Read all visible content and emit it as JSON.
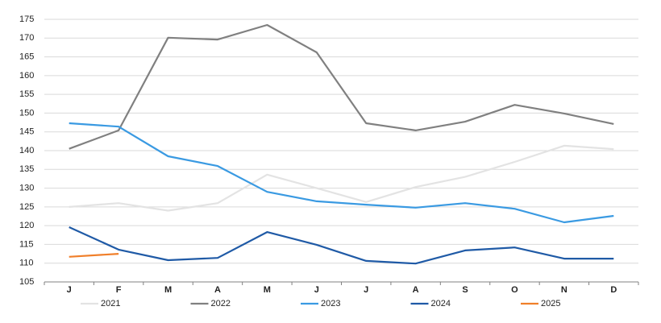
{
  "chart_data": {
    "type": "line",
    "categories": [
      "J",
      "F",
      "M",
      "A",
      "M",
      "J",
      "J",
      "A",
      "S",
      "O",
      "N",
      "D"
    ],
    "series": [
      {
        "name": "2021",
        "color": "#e3e3e3",
        "values": [
          125,
          126,
          124,
          126,
          133.6,
          130,
          126.3,
          130.3,
          133,
          137,
          141.3,
          140.4
        ]
      },
      {
        "name": "2022",
        "color": "#808080",
        "values": [
          140.5,
          145.4,
          170.1,
          169.6,
          173.5,
          166.2,
          147.3,
          145.4,
          147.7,
          152.2,
          149.9,
          147.1
        ]
      },
      {
        "name": "2023",
        "color": "#3a9ae2",
        "values": [
          147.3,
          146.4,
          138.5,
          135.9,
          129,
          126.5,
          125.6,
          124.8,
          126,
          124.5,
          120.9,
          122.6
        ]
      },
      {
        "name": "2024",
        "color": "#1f5aa6",
        "values": [
          119.6,
          113.6,
          110.8,
          111.4,
          118.3,
          114.9,
          110.6,
          109.9,
          113.4,
          114.2,
          111.2,
          111.2
        ]
      },
      {
        "name": "2025",
        "color": "#f07f2a",
        "values": [
          111.7,
          112.5,
          null,
          null,
          null,
          null,
          null,
          null,
          null,
          null,
          null,
          null
        ]
      }
    ],
    "ylim": [
      105,
      175
    ],
    "yticks": [
      105,
      110,
      115,
      120,
      125,
      130,
      135,
      140,
      145,
      150,
      155,
      160,
      165,
      170,
      175
    ],
    "grid": true,
    "legend": "bottom"
  }
}
